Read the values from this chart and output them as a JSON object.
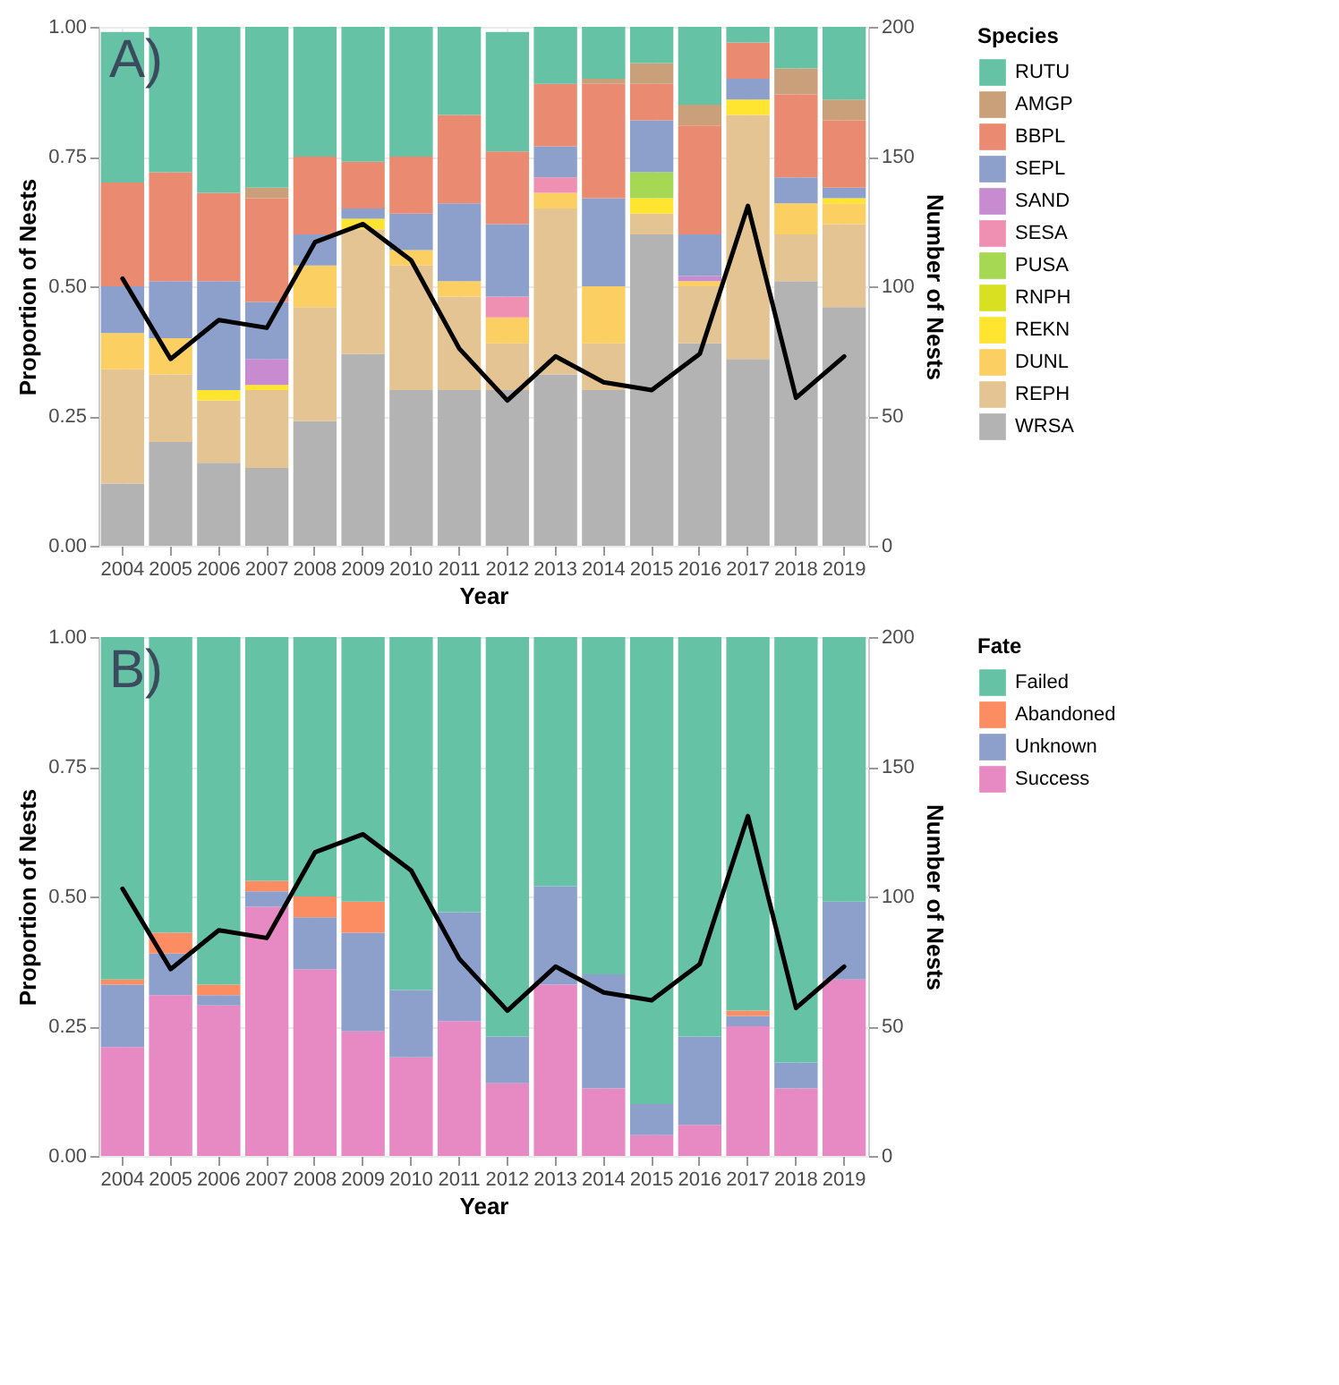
{
  "chart_data": [
    {
      "type": "bar",
      "stacked": true,
      "annotations": [
        "A)"
      ],
      "xlabel": "Year",
      "ylabel": "Proportion of Nests",
      "y2label": "Number of Nests",
      "legend_title": "Species",
      "legend": "right",
      "grid": true,
      "categories": [
        "2004",
        "2005",
        "2006",
        "2007",
        "2008",
        "2009",
        "2010",
        "2011",
        "2012",
        "2013",
        "2014",
        "2015",
        "2016",
        "2017",
        "2018",
        "2019"
      ],
      "ylim": [
        0,
        1
      ],
      "yticks": [
        {
          "value": 0,
          "label": "0.00"
        },
        {
          "value": 0.25,
          "label": "0.25"
        },
        {
          "value": 0.5,
          "label": "0.50"
        },
        {
          "value": 0.75,
          "label": "0.75"
        },
        {
          "value": 1,
          "label": "1.00"
        }
      ],
      "y2lim": [
        0,
        200
      ],
      "y2ticks": [
        0,
        50,
        100,
        150,
        200
      ],
      "series": [
        {
          "name": "WRSA",
          "color": "#b3b3b3",
          "values": [
            0.12,
            0.2,
            0.16,
            0.15,
            0.24,
            0.37,
            0.3,
            0.3,
            0.3,
            0.33,
            0.3,
            0.6,
            0.39,
            0.36,
            0.51,
            0.46
          ]
        },
        {
          "name": "REPH",
          "color": "#e5c494",
          "values": [
            0.22,
            0.13,
            0.12,
            0.15,
            0.22,
            0.24,
            0.24,
            0.18,
            0.09,
            0.32,
            0.09,
            0.04,
            0.11,
            0.47,
            0.09,
            0.16
          ]
        },
        {
          "name": "DUNL",
          "color": "#fccf62",
          "values": [
            0.07,
            0.07,
            null,
            null,
            0.08,
            null,
            0.03,
            0.03,
            0.05,
            0.03,
            0.11,
            null,
            0.01,
            null,
            0.06,
            0.04
          ]
        },
        {
          "name": "REKN",
          "color": "#ffe52f",
          "values": [
            null,
            null,
            0.02,
            0.01,
            null,
            0.02,
            null,
            null,
            null,
            null,
            null,
            0.03,
            null,
            0.03,
            null,
            0.01
          ]
        },
        {
          "name": "RNPH",
          "color": "#d9e021",
          "values": [
            null,
            null,
            null,
            null,
            null,
            null,
            null,
            null,
            null,
            null,
            null,
            null,
            null,
            null,
            null,
            null
          ]
        },
        {
          "name": "PUSA",
          "color": "#a6d854",
          "values": [
            null,
            null,
            null,
            null,
            null,
            null,
            null,
            null,
            null,
            null,
            null,
            0.05,
            null,
            null,
            null,
            null
          ]
        },
        {
          "name": "SESA",
          "color": "#ef8fb2",
          "values": [
            null,
            null,
            null,
            null,
            null,
            null,
            null,
            null,
            0.04,
            0.03,
            null,
            null,
            null,
            null,
            null,
            null
          ]
        },
        {
          "name": "SAND",
          "color": "#c88bd0",
          "values": [
            null,
            null,
            null,
            0.05,
            null,
            null,
            null,
            null,
            null,
            null,
            null,
            null,
            0.01,
            null,
            null,
            null
          ]
        },
        {
          "name": "SEPL",
          "color": "#8da0cb",
          "values": [
            0.09,
            0.11,
            0.21,
            0.11,
            0.06,
            0.02,
            0.07,
            0.15,
            0.14,
            0.06,
            0.17,
            0.1,
            0.08,
            0.04,
            0.05,
            0.02
          ]
        },
        {
          "name": "BBPL",
          "color": "#ea8a70",
          "values": [
            0.2,
            0.21,
            0.17,
            0.2,
            0.15,
            0.09,
            0.11,
            0.17,
            0.14,
            0.12,
            0.22,
            0.07,
            0.21,
            0.07,
            0.16,
            0.13
          ]
        },
        {
          "name": "AMGP",
          "color": "#c9a07a",
          "values": [
            null,
            null,
            null,
            0.02,
            null,
            null,
            null,
            null,
            null,
            null,
            0.01,
            0.04,
            0.04,
            null,
            0.05,
            0.04
          ]
        },
        {
          "name": "RUTU",
          "color": "#66c2a5",
          "values": [
            0.29,
            0.28,
            0.32,
            0.31,
            0.25,
            0.26,
            0.25,
            0.17,
            0.23,
            0.11,
            0.1,
            0.07,
            0.15,
            0.03,
            0.08,
            0.14
          ]
        },
        {
          "type": "line",
          "axis": "y2",
          "color": "#000000",
          "values": [
            103,
            72,
            87,
            84,
            117,
            124,
            110,
            76,
            56,
            73,
            63,
            60,
            74,
            131,
            57,
            73
          ]
        }
      ]
    },
    {
      "type": "bar",
      "stacked": true,
      "annotations": [
        "B)"
      ],
      "xlabel": "Year",
      "ylabel": "Proportion of Nests",
      "y2label": "Number of Nests",
      "legend_title": "Fate",
      "legend": "right",
      "grid": true,
      "categories": [
        "2004",
        "2005",
        "2006",
        "2007",
        "2008",
        "2009",
        "2010",
        "2011",
        "2012",
        "2013",
        "2014",
        "2015",
        "2016",
        "2017",
        "2018",
        "2019"
      ],
      "ylim": [
        0,
        1
      ],
      "yticks": [
        {
          "value": 0,
          "label": "0.00"
        },
        {
          "value": 0.25,
          "label": "0.25"
        },
        {
          "value": 0.5,
          "label": "0.50"
        },
        {
          "value": 0.75,
          "label": "0.75"
        },
        {
          "value": 1,
          "label": "1.00"
        }
      ],
      "y2lim": [
        0,
        200
      ],
      "y2ticks": [
        0,
        50,
        100,
        150,
        200
      ],
      "series": [
        {
          "name": "Success",
          "color": "#e78ac3",
          "values": [
            0.21,
            0.31,
            0.29,
            0.48,
            0.36,
            0.24,
            0.19,
            0.26,
            0.14,
            0.33,
            0.13,
            0.04,
            0.06,
            0.25,
            0.13,
            0.34
          ]
        },
        {
          "name": "Unknown",
          "color": "#8da0cb",
          "values": [
            0.12,
            0.08,
            0.02,
            0.03,
            0.1,
            0.19,
            0.13,
            0.21,
            0.09,
            0.19,
            0.22,
            0.06,
            0.17,
            0.02,
            0.05,
            0.15
          ]
        },
        {
          "name": "Abandoned",
          "color": "#fc8d62",
          "values": [
            0.01,
            0.04,
            0.02,
            0.02,
            0.04,
            0.06,
            null,
            null,
            null,
            null,
            null,
            null,
            null,
            0.01,
            null,
            null
          ]
        },
        {
          "name": "Failed",
          "color": "#66c2a5",
          "values": [
            0.66,
            0.57,
            0.67,
            0.47,
            0.5,
            0.51,
            0.68,
            0.53,
            0.77,
            0.48,
            0.65,
            0.9,
            0.77,
            0.72,
            0.82,
            0.51
          ]
        },
        {
          "type": "line",
          "axis": "y2",
          "color": "#000000",
          "values": [
            103,
            72,
            87,
            84,
            117,
            124,
            110,
            76,
            56,
            73,
            63,
            60,
            74,
            131,
            57,
            73
          ]
        }
      ]
    }
  ]
}
